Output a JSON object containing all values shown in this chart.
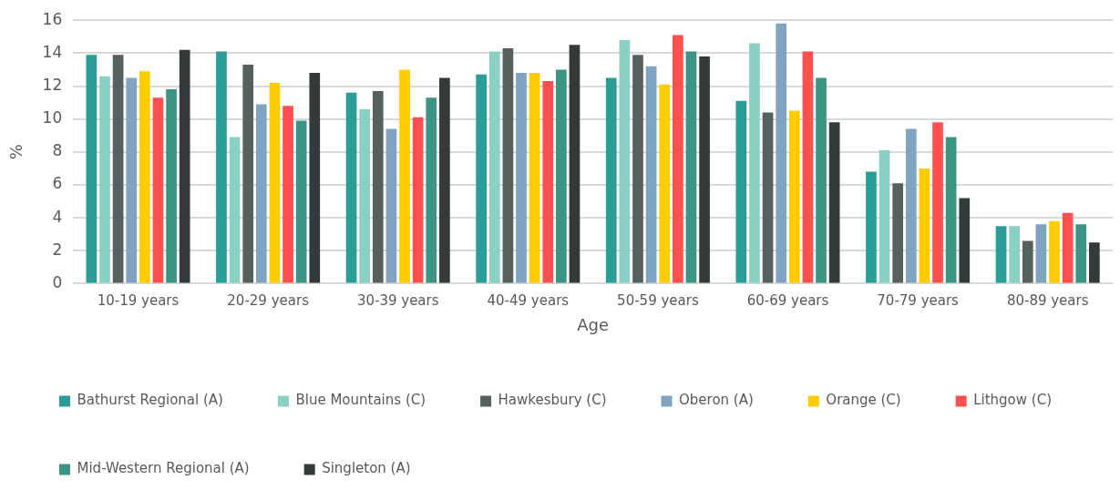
{
  "chart_data": {
    "type": "bar",
    "xlabel": "Age",
    "ylabel": "%",
    "categories": [
      "10-19 years",
      "20-29 years",
      "30-39 years",
      "40-49 years",
      "50-59 years",
      "60-69 years",
      "70-79 years",
      "80-89 years"
    ],
    "series": [
      {
        "name": "Bathurst Regional (A)",
        "color": "#2a9d99",
        "values": [
          13.9,
          14.1,
          11.6,
          12.7,
          12.5,
          11.1,
          6.8,
          3.5
        ]
      },
      {
        "name": "Blue Mountains (C)",
        "color": "#8ad0c4",
        "values": [
          12.6,
          8.9,
          10.6,
          14.1,
          14.8,
          14.6,
          8.1,
          3.5
        ]
      },
      {
        "name": "Hawkesbury (C)",
        "color": "#56605e",
        "values": [
          13.9,
          13.3,
          11.7,
          14.3,
          13.9,
          10.4,
          6.1,
          2.6
        ]
      },
      {
        "name": "Oberon (A)",
        "color": "#7fa3c0",
        "values": [
          12.5,
          10.9,
          9.4,
          12.8,
          13.2,
          15.8,
          9.4,
          3.6
        ]
      },
      {
        "name": "Orange (C)",
        "color": "#ffcc00",
        "values": [
          12.9,
          12.2,
          13.0,
          12.8,
          12.1,
          10.5,
          7.0,
          3.8
        ]
      },
      {
        "name": "Lithgow (C)",
        "color": "#ff5050",
        "values": [
          11.3,
          10.8,
          10.1,
          12.3,
          15.1,
          14.1,
          9.8,
          4.3
        ]
      },
      {
        "name": "Mid-Western Regional (A)",
        "color": "#3c9484",
        "values": [
          11.8,
          9.9,
          11.3,
          13.0,
          14.1,
          12.5,
          8.9,
          3.6
        ]
      },
      {
        "name": "Singleton (A)",
        "color": "#343a3a",
        "values": [
          14.2,
          12.8,
          12.5,
          14.5,
          13.8,
          9.8,
          5.2,
          2.5
        ]
      }
    ],
    "ylim": [
      0,
      16
    ],
    "yticks": [
      0,
      2,
      4,
      6,
      8,
      10,
      12,
      14,
      16
    ],
    "grid": "y",
    "legend": "bottom"
  }
}
